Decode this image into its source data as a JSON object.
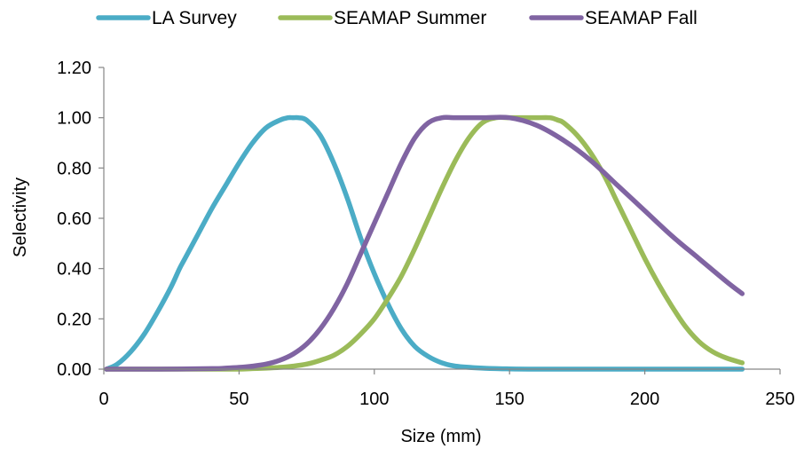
{
  "chart_data": {
    "type": "line",
    "xlabel": "Size (mm)",
    "ylabel": "Selectivity",
    "xlim": [
      0,
      250
    ],
    "ylim": [
      0,
      1.2
    ],
    "x_ticks": [
      0,
      50,
      100,
      150,
      200,
      250
    ],
    "x_tick_labels": [
      "0",
      "50",
      "100",
      "150",
      "200",
      "250"
    ],
    "y_ticks": [
      0,
      0.2,
      0.4,
      0.6,
      0.8,
      1.0,
      1.2
    ],
    "y_tick_labels": [
      "0.00",
      "0.20",
      "0.40",
      "0.60",
      "0.80",
      "1.00",
      "1.20"
    ],
    "grid": false,
    "legend_position": "top",
    "series": [
      {
        "name": "LA Survey",
        "color": "#4BACC6",
        "x": [
          1,
          5,
          10,
          15,
          20,
          25,
          28,
          30,
          35,
          40,
          45,
          50,
          55,
          60,
          65,
          68,
          70,
          72,
          75,
          80,
          85,
          90,
          95,
          100,
          105,
          110,
          115,
          120,
          125,
          130,
          140,
          150,
          160,
          180,
          200,
          220,
          236
        ],
        "y": [
          0.0,
          0.02,
          0.07,
          0.14,
          0.23,
          0.33,
          0.4,
          0.44,
          0.54,
          0.64,
          0.73,
          0.82,
          0.9,
          0.96,
          0.99,
          1.0,
          1.0,
          1.0,
          0.99,
          0.93,
          0.82,
          0.68,
          0.52,
          0.38,
          0.26,
          0.16,
          0.09,
          0.05,
          0.025,
          0.012,
          0.004,
          0.001,
          0.0,
          0.0,
          0.0,
          0.0,
          0.0
        ]
      },
      {
        "name": "SEAMAP Summer",
        "color": "#9BBB59",
        "x": [
          1,
          20,
          40,
          50,
          55,
          60,
          65,
          70,
          75,
          80,
          85,
          90,
          95,
          100,
          105,
          110,
          115,
          120,
          125,
          130,
          135,
          140,
          145,
          150,
          155,
          160,
          165,
          168,
          170,
          175,
          180,
          185,
          190,
          195,
          200,
          205,
          210,
          215,
          220,
          225,
          230,
          236
        ],
        "y": [
          0.0,
          0.0,
          0.0,
          0.0,
          0.002,
          0.004,
          0.007,
          0.012,
          0.02,
          0.035,
          0.055,
          0.09,
          0.14,
          0.2,
          0.28,
          0.37,
          0.48,
          0.6,
          0.72,
          0.83,
          0.92,
          0.98,
          1.0,
          1.0,
          1.0,
          1.0,
          1.0,
          0.99,
          0.98,
          0.93,
          0.86,
          0.77,
          0.66,
          0.55,
          0.44,
          0.34,
          0.25,
          0.17,
          0.11,
          0.07,
          0.045,
          0.025
        ]
      },
      {
        "name": "SEAMAP Fall",
        "color": "#8064A2",
        "x": [
          1,
          20,
          40,
          45,
          50,
          55,
          60,
          65,
          70,
          75,
          80,
          85,
          90,
          95,
          100,
          105,
          110,
          115,
          120,
          125,
          130,
          140,
          150,
          160,
          170,
          180,
          190,
          200,
          210,
          220,
          230,
          236
        ],
        "y": [
          0.0,
          0.0,
          0.002,
          0.004,
          0.007,
          0.012,
          0.02,
          0.035,
          0.06,
          0.1,
          0.16,
          0.24,
          0.34,
          0.46,
          0.58,
          0.7,
          0.82,
          0.92,
          0.98,
          1.0,
          1.0,
          1.0,
          1.0,
          0.97,
          0.91,
          0.83,
          0.73,
          0.63,
          0.53,
          0.44,
          0.35,
          0.3
        ]
      }
    ]
  }
}
